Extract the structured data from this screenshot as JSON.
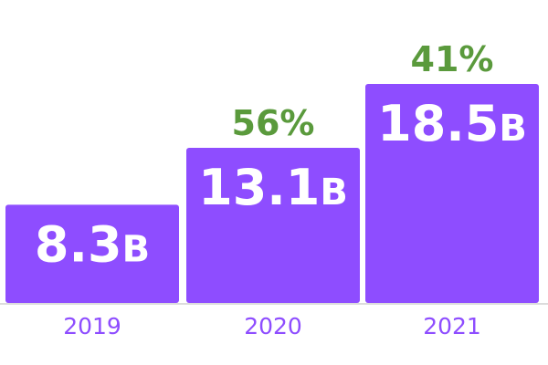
{
  "chart_data": {
    "type": "bar",
    "categories": [
      "2019",
      "2020",
      "2021"
    ],
    "values": [
      8.3,
      13.1,
      18.5
    ],
    "value_labels": [
      "8.3",
      "13.1",
      "18.5"
    ],
    "value_suffix": "B",
    "growth_labels": [
      "",
      "56%",
      "41%"
    ],
    "ylim": [
      0,
      18.5
    ],
    "grid": false,
    "legend": "none",
    "title": "",
    "xlabel": "",
    "ylabel": "",
    "bar_color": "#8e4dff",
    "value_text_color": "#ffffff",
    "growth_color": "#5a9a3c",
    "category_color": "#8e4dff",
    "baseline_color": "#dcdcdc"
  }
}
